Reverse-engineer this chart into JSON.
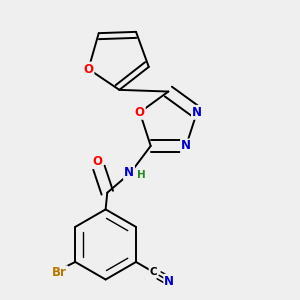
{
  "background_color": "#efefef",
  "bond_color": "#000000",
  "atom_colors": {
    "O": "#ff0000",
    "N": "#0000cc",
    "Br": "#b87800",
    "C": "#000000",
    "H": "#228b22"
  },
  "font_size": 8.5,
  "bond_width": 1.4
}
